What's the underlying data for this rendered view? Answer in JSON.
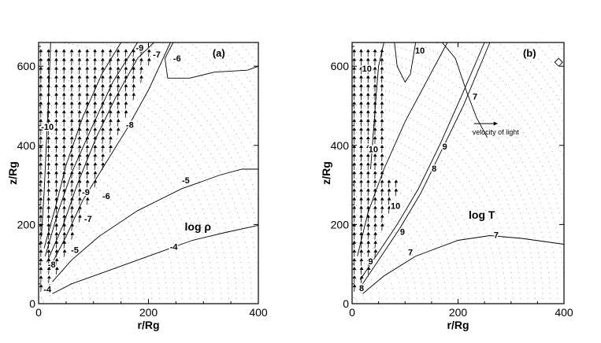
{
  "chart_data": [
    {
      "type": "contour",
      "panel_label": "(a)",
      "quantity_label": "log  ρ",
      "xlabel": "r/Rg",
      "ylabel": "z/Rg",
      "xlim": [
        0,
        400
      ],
      "ylim": [
        0,
        660
      ],
      "x_ticks": [
        "0",
        "200",
        "400"
      ],
      "x_tick_values": [
        0,
        200,
        400
      ],
      "y_ticks": [
        "0",
        "200",
        "400",
        "600"
      ],
      "y_tick_values": [
        0,
        200,
        400,
        600
      ],
      "contours": [
        {
          "level": "-4",
          "points": [
            [
              25,
              25
            ],
            [
              60,
              50
            ],
            [
              100,
              70
            ],
            [
              160,
              100
            ],
            [
              220,
              130
            ],
            [
              280,
              160
            ],
            [
              340,
              180
            ],
            [
              400,
              198
            ]
          ],
          "labels": [
            {
              "text": "-4",
              "x": 16,
              "y": 35
            },
            {
              "text": "-4",
              "x": 246,
              "y": 142
            }
          ]
        },
        {
          "level": "-5",
          "points": [
            [
              25,
              55
            ],
            [
              60,
              110
            ],
            [
              110,
              170
            ],
            [
              180,
              235
            ],
            [
              260,
              290
            ],
            [
              330,
              325
            ],
            [
              370,
              340
            ],
            [
              400,
              340
            ]
          ],
          "labels": [
            {
              "text": "-5",
              "x": 66,
              "y": 134
            },
            {
              "text": "-5",
              "x": 268,
              "y": 310
            }
          ]
        },
        {
          "level": "-6",
          "points": [
            [
              20,
              90
            ],
            [
              50,
              170
            ],
            [
              80,
              260
            ],
            [
              120,
              350
            ],
            [
              160,
              440
            ],
            [
              200,
              540
            ],
            [
              240,
              660
            ]
          ],
          "labels": [
            {
              "text": "-6",
              "x": 123,
              "y": 270
            }
          ]
        },
        {
          "level": "-7",
          "points": [
            [
              15,
              105
            ],
            [
              45,
              200
            ],
            [
              70,
              300
            ],
            [
              105,
              420
            ],
            [
              140,
              520
            ],
            [
              180,
              620
            ],
            [
              210,
              660
            ]
          ],
          "labels": [
            {
              "text": "-7",
              "x": 90,
              "y": 213
            },
            {
              "text": "-7",
              "x": 215,
              "y": 628
            }
          ]
        },
        {
          "level": "-8",
          "points": [
            [
              12,
              120
            ],
            [
              35,
              230
            ],
            [
              60,
              330
            ],
            [
              95,
              440
            ],
            [
              135,
              560
            ],
            [
              180,
              660
            ]
          ],
          "labels": [
            {
              "text": "-8",
              "x": 24,
              "y": 97
            },
            {
              "text": "-8",
              "x": 166,
              "y": 450
            }
          ]
        },
        {
          "level": "-9",
          "points": [
            [
              10,
              140
            ],
            [
              30,
              240
            ],
            [
              50,
              350
            ],
            [
              80,
              470
            ],
            [
              115,
              580
            ],
            [
              150,
              660
            ]
          ],
          "labels": [
            {
              "text": "-9",
              "x": 86,
              "y": 280
            },
            {
              "text": "-9",
              "x": 184,
              "y": 645
            }
          ]
        },
        {
          "level": "-10",
          "points": [
            [
              5,
              170
            ],
            [
              10,
              280
            ],
            [
              14,
              400
            ],
            [
              18,
              520
            ],
            [
              22,
              660
            ]
          ],
          "labels": [
            {
              "text": "-10",
              "x": 16,
              "y": 445
            }
          ]
        },
        {
          "level": "-6",
          "points": [
            [
              245,
              660
            ],
            [
              230,
              620
            ],
            [
              235,
              570
            ],
            [
              275,
              570
            ],
            [
              320,
              585
            ],
            [
              380,
              590
            ],
            [
              400,
              600
            ]
          ],
          "labels": [
            {
              "text": "-6",
              "x": 252,
              "y": 618
            }
          ]
        }
      ],
      "velocity_field": true
    },
    {
      "type": "contour",
      "panel_label": "(b)",
      "quantity_label": "log T",
      "xlabel": "r/Rg",
      "ylabel": "z/Rg",
      "xlim": [
        0,
        400
      ],
      "ylim": [
        0,
        660
      ],
      "x_ticks": [
        "0",
        "200",
        "400"
      ],
      "x_tick_values": [
        0,
        200,
        400
      ],
      "y_ticks": [
        "0",
        "200",
        "400",
        "600"
      ],
      "y_tick_values": [
        0,
        200,
        400,
        600
      ],
      "velocity_legend": "velocity of light",
      "contours": [
        {
          "level": "7",
          "points": [
            [
              20,
              25
            ],
            [
              60,
              70
            ],
            [
              120,
              120
            ],
            [
              200,
              160
            ],
            [
              260,
              172
            ],
            [
              320,
              165
            ],
            [
              400,
              150
            ]
          ],
          "labels": [
            {
              "text": "7",
              "x": 110,
              "y": 128
            },
            {
              "text": "7",
              "x": 272,
              "y": 172
            }
          ]
        },
        {
          "level": "8",
          "points": [
            [
              20,
              50
            ],
            [
              50,
              110
            ],
            [
              90,
              190
            ],
            [
              130,
              280
            ],
            [
              170,
              390
            ],
            [
              210,
              500
            ],
            [
              260,
              660
            ]
          ],
          "labels": [
            {
              "text": "8",
              "x": 155,
              "y": 340
            },
            {
              "text": "8",
              "x": 18,
              "y": 38
            }
          ]
        },
        {
          "level": "9",
          "points": [
            [
              15,
              60
            ],
            [
              45,
              120
            ],
            [
              85,
              200
            ],
            [
              125,
              290
            ],
            [
              165,
              400
            ],
            [
              205,
              520
            ],
            [
              250,
              660
            ]
          ],
          "labels": [
            {
              "text": "9",
              "x": 95,
              "y": 180
            },
            {
              "text": "9",
              "x": 175,
              "y": 395
            },
            {
              "text": "9",
              "x": 35,
              "y": 105
            }
          ]
        },
        {
          "level": "10",
          "points": [
            [
              10,
              120
            ],
            [
              30,
              230
            ],
            [
              60,
              340
            ],
            [
              100,
              460
            ],
            [
              140,
              560
            ],
            [
              180,
              660
            ]
          ],
          "labels": [
            {
              "text": "10",
              "x": 82,
              "y": 245
            },
            {
              "text": "10",
              "x": 28,
              "y": 592
            },
            {
              "text": "10",
              "x": 128,
              "y": 638
            }
          ]
        },
        {
          "level": "7",
          "points": [
            [
              170,
              660
            ],
            [
              195,
              620
            ],
            [
              215,
              540
            ],
            [
              235,
              470
            ],
            [
              255,
              420
            ]
          ],
          "labels": [
            {
              "text": "7",
              "x": 232,
              "y": 522
            }
          ]
        },
        {
          "level": "10",
          "points": [
            [
              35,
              340
            ],
            [
              40,
              430
            ],
            [
              45,
              520
            ],
            [
              50,
              600
            ],
            [
              60,
              660
            ]
          ],
          "labels": [
            {
              "text": "10",
              "x": 40,
              "y": 388
            }
          ]
        },
        {
          "level": "10",
          "points": [
            [
              80,
              660
            ],
            [
              85,
              600
            ],
            [
              100,
              560
            ],
            [
              110,
              580
            ],
            [
              120,
              660
            ]
          ],
          "labels": []
        }
      ],
      "velocity_field": true
    }
  ]
}
